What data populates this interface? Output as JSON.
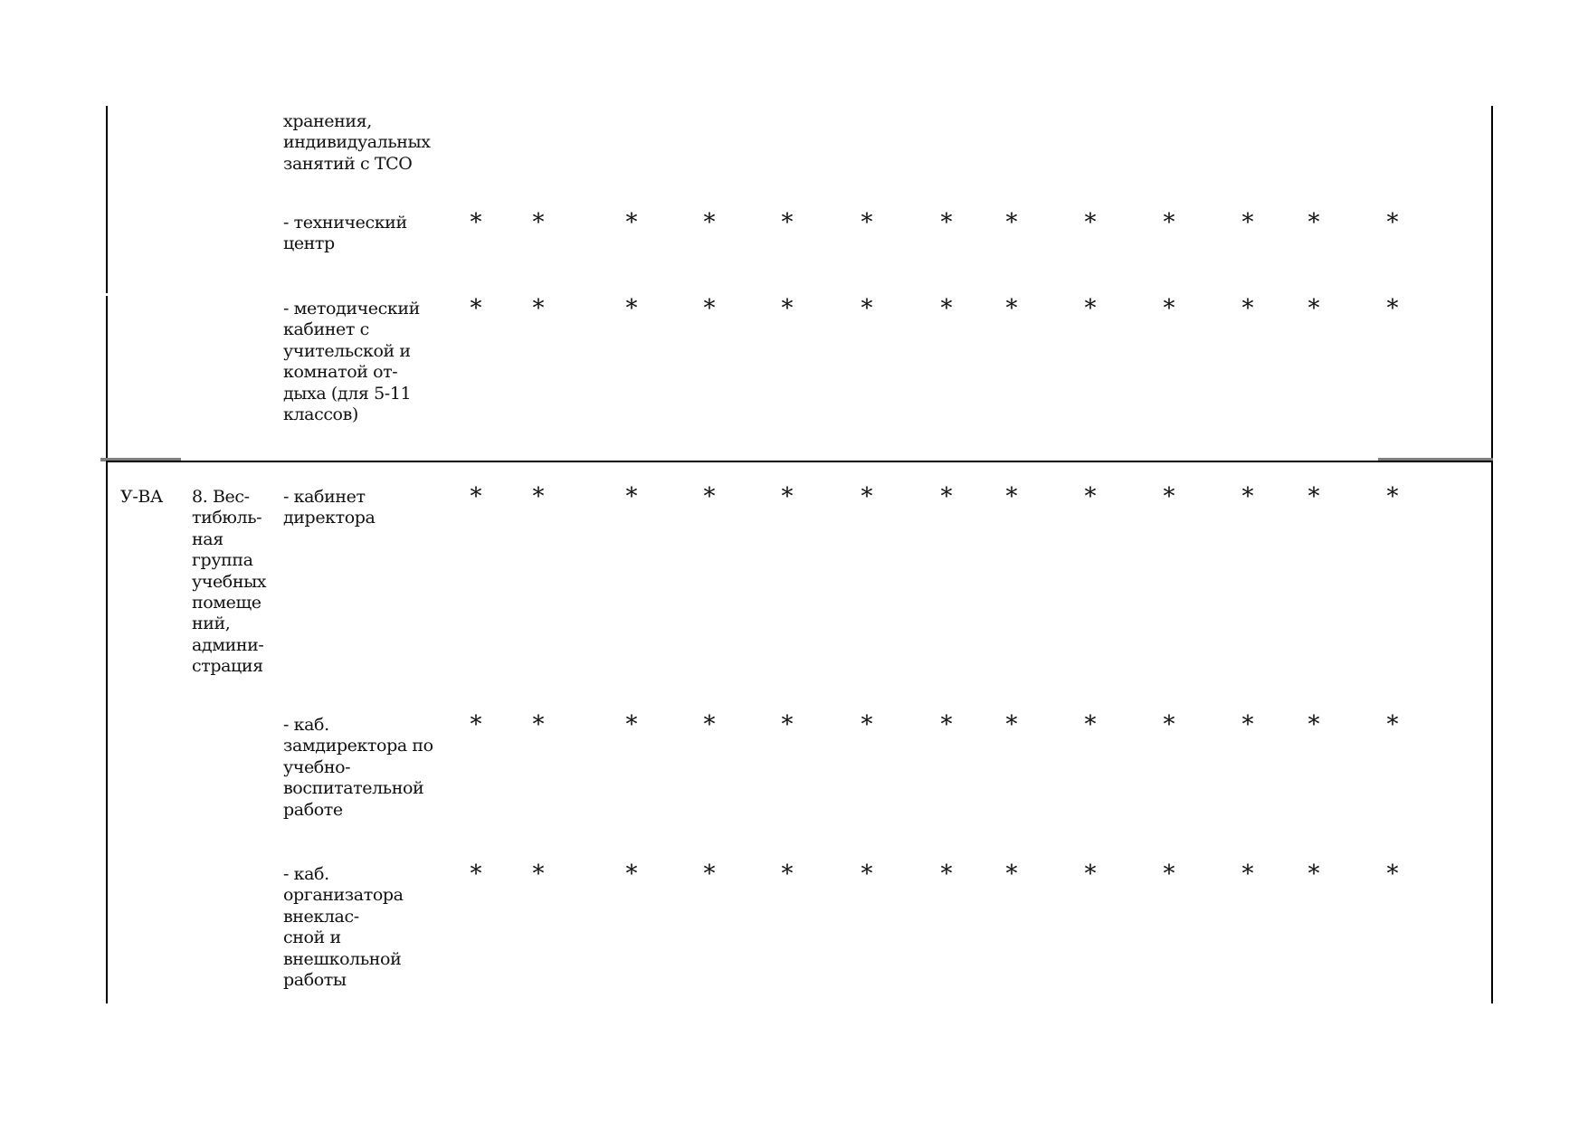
{
  "page": {
    "background": "#ffffff",
    "text_color": "#111111",
    "border_color": "#000000",
    "gray_border_color": "#7f7f7f",
    "star_symbol": "*"
  },
  "table": {
    "star_column_count": 13,
    "rows": [
      {
        "group": "",
        "subgroup": "",
        "room": "хранения,\nиндивидуальных\nзанятий с ТСО",
        "stars": false
      },
      {
        "group": "",
        "subgroup": "",
        "room": "- технический\nцентр",
        "stars": true
      },
      {
        "group": "",
        "subgroup": "",
        "room": "- методический\nкабинет с\nучительской и\nкомнатой от-\nдыха (для 5-11\nклассов)",
        "stars": true
      },
      {
        "group": "У-ВА",
        "subgroup": "8. Вес-\nтибюль-\nная\nгруппа\nучебных\nпомеще\nний,\nадмини-\nстрация",
        "room": "- кабинет\nдиректора",
        "stars": true
      },
      {
        "group": "",
        "subgroup": "",
        "room": "- каб.\nзамдиректора по\nучебно-\nвоспитательной\nработе",
        "stars": true
      },
      {
        "group": "",
        "subgroup": "",
        "room": "- каб.\nорганизатора\nвнеклас-\nсной и\nвнешкольной\nработы",
        "stars": true
      }
    ]
  }
}
